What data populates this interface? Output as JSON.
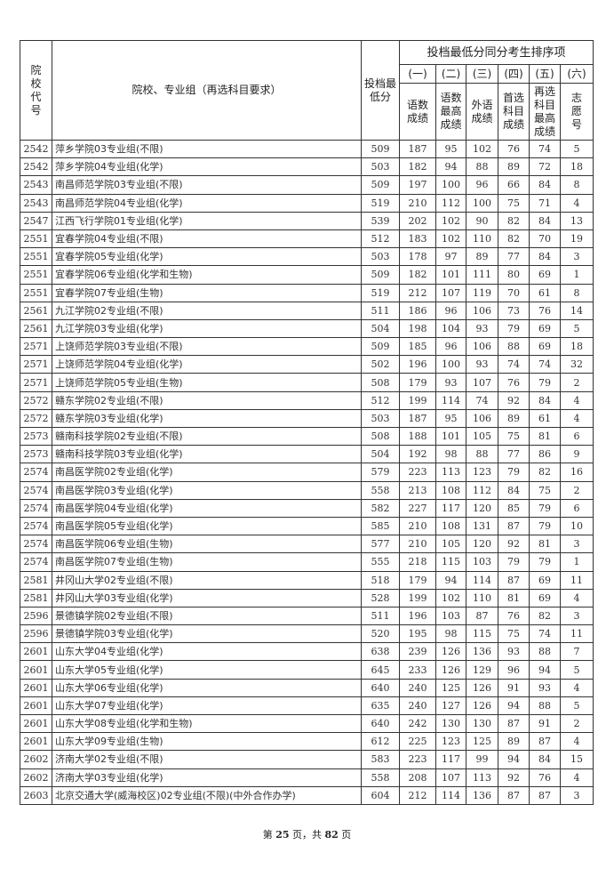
{
  "header": {
    "code": "院校代号",
    "name": "院校、专业组（再选科目要求）",
    "min_score": "投档最低分",
    "tie_group": "投档最低分同分考生排序项",
    "tie_cols": [
      {
        "num": "(一)",
        "label": "语数成绩"
      },
      {
        "num": "(二)",
        "label": "语数最高成绩"
      },
      {
        "num": "(三)",
        "label": "外语成绩"
      },
      {
        "num": "(四)",
        "label": "首选科目成绩"
      },
      {
        "num": "(五)",
        "label": "再选科目最高成绩"
      },
      {
        "num": "(六)",
        "label": "志愿号"
      }
    ]
  },
  "rows": [
    [
      "2542",
      "萍乡学院03专业组(不限)",
      "509",
      "187",
      "95",
      "102",
      "76",
      "74",
      "5"
    ],
    [
      "2542",
      "萍乡学院04专业组(化学)",
      "503",
      "182",
      "94",
      "88",
      "89",
      "72",
      "18"
    ],
    [
      "2543",
      "南昌师范学院03专业组(不限)",
      "509",
      "197",
      "100",
      "96",
      "66",
      "84",
      "8"
    ],
    [
      "2543",
      "南昌师范学院04专业组(化学)",
      "519",
      "210",
      "112",
      "100",
      "75",
      "71",
      "4"
    ],
    [
      "2547",
      "江西飞行学院01专业组(化学)",
      "539",
      "202",
      "102",
      "90",
      "82",
      "84",
      "13"
    ],
    [
      "2551",
      "宜春学院04专业组(不限)",
      "512",
      "183",
      "102",
      "110",
      "82",
      "70",
      "19"
    ],
    [
      "2551",
      "宜春学院05专业组(化学)",
      "503",
      "178",
      "97",
      "89",
      "77",
      "84",
      "3"
    ],
    [
      "2551",
      "宜春学院06专业组(化学和生物)",
      "509",
      "182",
      "101",
      "111",
      "80",
      "69",
      "1"
    ],
    [
      "2551",
      "宜春学院07专业组(生物)",
      "519",
      "212",
      "107",
      "119",
      "70",
      "61",
      "8"
    ],
    [
      "2561",
      "九江学院02专业组(不限)",
      "511",
      "186",
      "96",
      "106",
      "73",
      "76",
      "14"
    ],
    [
      "2561",
      "九江学院03专业组(化学)",
      "504",
      "198",
      "104",
      "93",
      "79",
      "69",
      "5"
    ],
    [
      "2571",
      "上饶师范学院03专业组(不限)",
      "509",
      "185",
      "96",
      "106",
      "88",
      "69",
      "18"
    ],
    [
      "2571",
      "上饶师范学院04专业组(化学)",
      "502",
      "196",
      "100",
      "93",
      "74",
      "74",
      "32"
    ],
    [
      "2571",
      "上饶师范学院05专业组(生物)",
      "508",
      "179",
      "93",
      "107",
      "76",
      "79",
      "2"
    ],
    [
      "2572",
      "赣东学院02专业组(不限)",
      "512",
      "199",
      "114",
      "74",
      "92",
      "84",
      "4"
    ],
    [
      "2572",
      "赣东学院03专业组(化学)",
      "503",
      "187",
      "95",
      "106",
      "89",
      "61",
      "4"
    ],
    [
      "2573",
      "赣南科技学院02专业组(不限)",
      "508",
      "188",
      "101",
      "105",
      "75",
      "81",
      "6"
    ],
    [
      "2573",
      "赣南科技学院03专业组(化学)",
      "504",
      "192",
      "98",
      "88",
      "77",
      "86",
      "9"
    ],
    [
      "2574",
      "南昌医学院02专业组(化学)",
      "579",
      "223",
      "113",
      "123",
      "79",
      "82",
      "16"
    ],
    [
      "2574",
      "南昌医学院03专业组(化学)",
      "558",
      "213",
      "108",
      "112",
      "84",
      "75",
      "2"
    ],
    [
      "2574",
      "南昌医学院04专业组(化学)",
      "582",
      "227",
      "117",
      "120",
      "85",
      "79",
      "6"
    ],
    [
      "2574",
      "南昌医学院05专业组(化学)",
      "585",
      "210",
      "108",
      "131",
      "87",
      "79",
      "10"
    ],
    [
      "2574",
      "南昌医学院06专业组(生物)",
      "577",
      "210",
      "105",
      "120",
      "92",
      "81",
      "3"
    ],
    [
      "2574",
      "南昌医学院07专业组(生物)",
      "555",
      "218",
      "115",
      "103",
      "79",
      "79",
      "1"
    ],
    [
      "2581",
      "井冈山大学02专业组(不限)",
      "518",
      "179",
      "94",
      "114",
      "87",
      "69",
      "11"
    ],
    [
      "2581",
      "井冈山大学03专业组(化学)",
      "528",
      "199",
      "102",
      "110",
      "81",
      "69",
      "4"
    ],
    [
      "2596",
      "景德镇学院02专业组(不限)",
      "511",
      "196",
      "103",
      "87",
      "76",
      "82",
      "3"
    ],
    [
      "2596",
      "景德镇学院03专业组(化学)",
      "520",
      "195",
      "98",
      "115",
      "75",
      "74",
      "11"
    ],
    [
      "2601",
      "山东大学04专业组(化学)",
      "638",
      "239",
      "126",
      "136",
      "93",
      "88",
      "7"
    ],
    [
      "2601",
      "山东大学05专业组(化学)",
      "645",
      "233",
      "126",
      "129",
      "96",
      "94",
      "5"
    ],
    [
      "2601",
      "山东大学06专业组(化学)",
      "640",
      "240",
      "125",
      "126",
      "91",
      "93",
      "4"
    ],
    [
      "2601",
      "山东大学07专业组(化学)",
      "635",
      "240",
      "127",
      "126",
      "94",
      "88",
      "5"
    ],
    [
      "2601",
      "山东大学08专业组(化学和生物)",
      "640",
      "242",
      "130",
      "130",
      "87",
      "91",
      "2"
    ],
    [
      "2601",
      "山东大学09专业组(生物)",
      "612",
      "225",
      "123",
      "125",
      "89",
      "87",
      "4"
    ],
    [
      "2602",
      "济南大学02专业组(不限)",
      "583",
      "223",
      "117",
      "99",
      "94",
      "84",
      "15"
    ],
    [
      "2602",
      "济南大学03专业组(化学)",
      "558",
      "208",
      "107",
      "113",
      "92",
      "76",
      "4"
    ],
    [
      "2603",
      "北京交通大学(威海校区)02专业组(不限)(中外合作办学)",
      "604",
      "212",
      "114",
      "136",
      "87",
      "87",
      "3"
    ]
  ],
  "footer": {
    "prefix": "第 ",
    "page": "25",
    "middle": " 页，共 ",
    "total": "82",
    "suffix": " 页"
  }
}
